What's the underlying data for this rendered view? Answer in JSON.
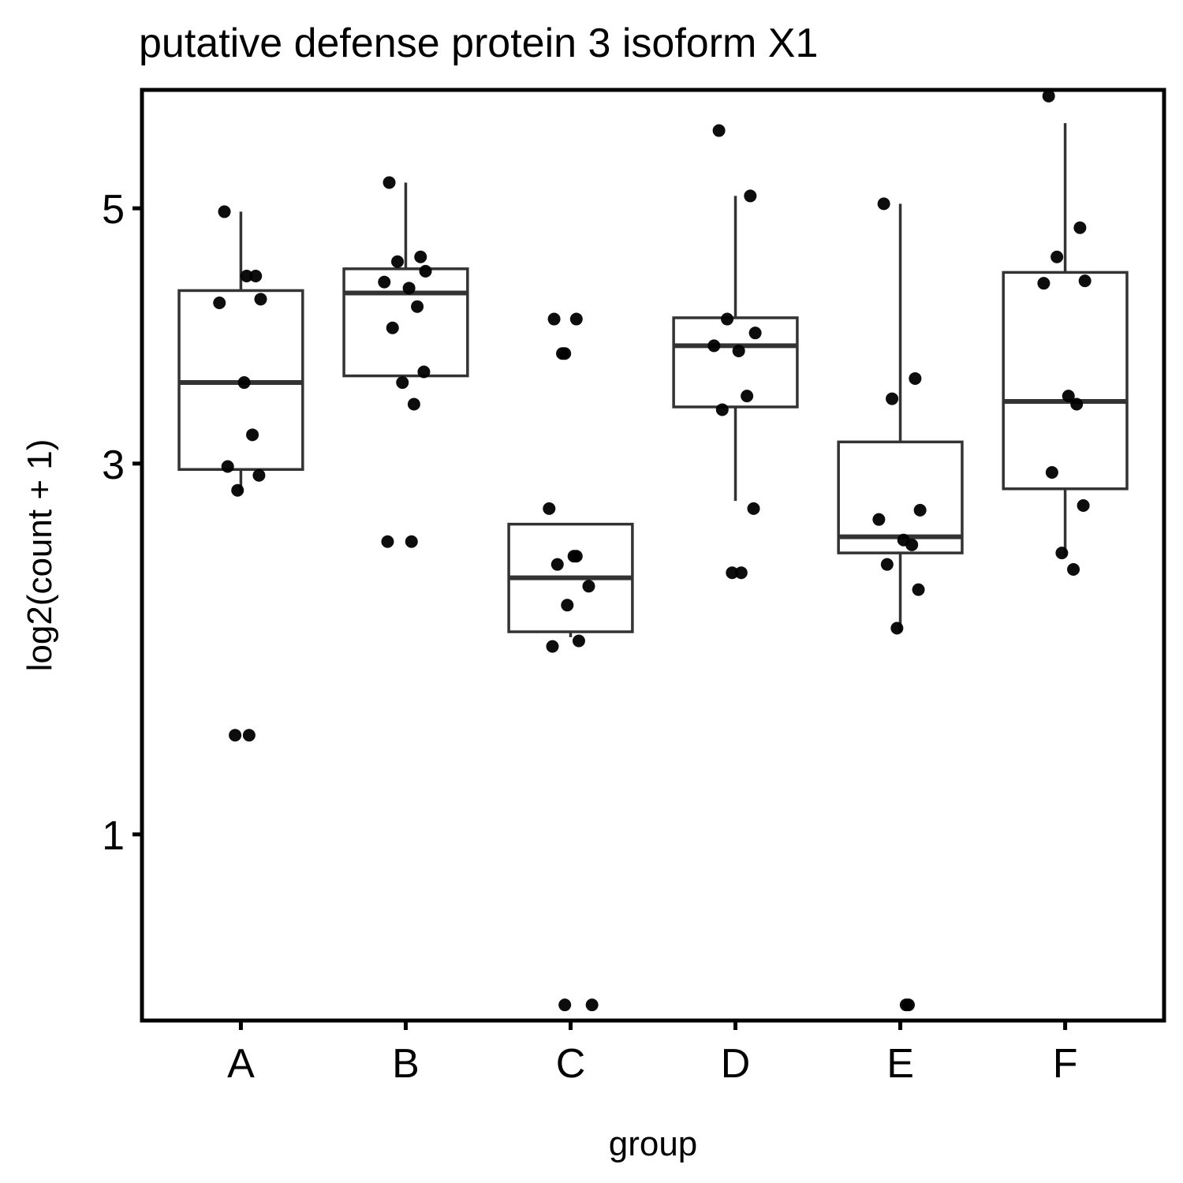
{
  "chart_data": {
    "type": "box",
    "title": "putative defense protein 3 isoform X1",
    "xlabel": "group",
    "ylabel": "log2(count + 1)",
    "y_ticks": [
      1,
      3,
      5
    ],
    "y_scale": "sqrt",
    "ylim": [
      0.4,
      6.1
    ],
    "grid": false,
    "legend": "none",
    "categories": [
      "A",
      "B",
      "C",
      "D",
      "E",
      "F"
    ],
    "boxes": [
      {
        "group": "A",
        "whisker_low": 2.8,
        "q1": 2.96,
        "median": 3.58,
        "q3": 4.3,
        "whisker_high": 4.97
      },
      {
        "group": "B",
        "whisker_low": 3.63,
        "q1": 3.63,
        "median": 4.28,
        "q3": 4.48,
        "whisker_high": 5.23
      },
      {
        "group": "C",
        "whisker_low": 1.93,
        "q1": 1.96,
        "median": 2.27,
        "q3": 2.6,
        "whisker_high": 2.6
      },
      {
        "group": "D",
        "whisker_low": 2.75,
        "q1": 3.4,
        "median": 3.86,
        "q3": 4.08,
        "whisker_high": 5.11
      },
      {
        "group": "E",
        "whisker_low": 1.96,
        "q1": 2.42,
        "median": 2.52,
        "q3": 3.15,
        "whisker_high": 5.04
      },
      {
        "group": "F",
        "whisker_low": 2.4,
        "q1": 2.83,
        "median": 3.44,
        "q3": 4.45,
        "whisker_high": 5.78
      }
    ],
    "points": [
      {
        "group": "A",
        "values": [
          4.97,
          4.42,
          4.42,
          4.23,
          4.2,
          3.58,
          3.2,
          2.98,
          2.92,
          2.82,
          1.43,
          1.43
        ]
      },
      {
        "group": "B",
        "values": [
          5.23,
          4.58,
          4.54,
          4.46,
          4.37,
          4.32,
          4.17,
          4.0,
          3.66,
          3.58,
          3.42,
          2.49,
          2.49
        ]
      },
      {
        "group": "C",
        "values": [
          4.07,
          4.07,
          3.8,
          3.8,
          2.7,
          2.4,
          2.4,
          2.35,
          2.22,
          2.11,
          1.91,
          1.88,
          0.44,
          0.44
        ]
      },
      {
        "group": "D",
        "values": [
          5.71,
          5.11,
          4.07,
          3.96,
          3.86,
          3.82,
          3.48,
          3.38,
          2.7,
          2.3,
          2.3
        ]
      },
      {
        "group": "E",
        "values": [
          5.04,
          3.61,
          3.46,
          2.69,
          2.63,
          2.5,
          2.47,
          2.35,
          2.2,
          1.98,
          0.44,
          0.44
        ]
      },
      {
        "group": "F",
        "values": [
          6.04,
          4.83,
          4.58,
          4.38,
          4.36,
          3.48,
          3.42,
          2.94,
          2.72,
          2.42,
          2.32
        ]
      }
    ]
  }
}
